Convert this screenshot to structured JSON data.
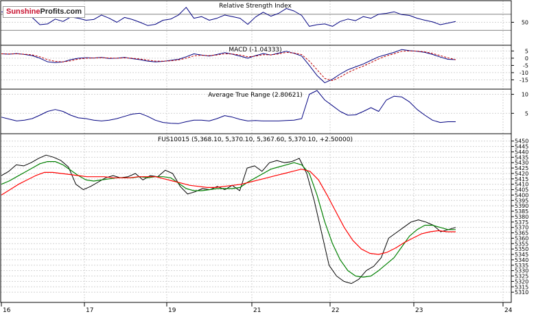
{
  "brand": {
    "part1": "Sunshine",
    "part2": "Profits.com"
  },
  "colors": {
    "background": "#ffffff",
    "grid": "#d2d2d2",
    "frame": "#000000",
    "price": "#000000",
    "ma_short": "#008000",
    "ma_long": "#ff0000",
    "indicator_line": "#000080",
    "macd_signal": "#c00000"
  },
  "x_axis": {
    "labels": [
      "16",
      "17",
      "19",
      "21",
      "22",
      "23",
      "24"
    ]
  },
  "chart_data": [
    {
      "type": "line",
      "title": "Relative Strength Index",
      "ylim": [
        0,
        100
      ],
      "levels": [
        70,
        30
      ],
      "yticks": [
        "50"
      ],
      "series": [
        {
          "name": "RSI",
          "values": [
            76,
            74,
            78,
            70,
            62,
            44,
            46,
            58,
            52,
            63,
            60,
            55,
            57,
            68,
            60,
            50,
            62,
            57,
            50,
            42,
            45,
            55,
            58,
            68,
            87,
            60,
            64,
            55,
            60,
            68,
            64,
            60,
            45,
            63,
            75,
            65,
            72,
            84,
            78,
            67,
            40,
            44,
            46,
            40,
            52,
            58,
            54,
            64,
            60,
            70,
            72,
            76,
            69,
            67,
            60,
            55,
            51,
            44,
            48,
            52
          ]
        }
      ]
    },
    {
      "type": "line",
      "title": "MACD (-1.04333)",
      "ylim": [
        -20,
        8
      ],
      "yticks": [
        "5",
        "0",
        "-5",
        "-10",
        "-15"
      ],
      "series": [
        {
          "values": [
            3,
            2.8,
            3.2,
            2.6,
            1.8,
            0,
            -2.5,
            -3,
            -2.6,
            -1,
            0,
            0.3,
            0.1,
            0.5,
            -0.2,
            0,
            0.5,
            -0.3,
            -1,
            -2,
            -2.6,
            -2.2,
            -1.5,
            -0.8,
            1,
            3,
            2.2,
            1.5,
            2.6,
            3.8,
            2.8,
            1.4,
            0,
            1.8,
            3.2,
            2.2,
            3.5,
            4.8,
            3.4,
            1.5,
            -5,
            -12,
            -17,
            -14.5,
            -11,
            -8,
            -6,
            -4,
            -1.5,
            1,
            2.5,
            4,
            6,
            5.2,
            4.8,
            4,
            2.6,
            0.8,
            -0.8,
            -1
          ]
        },
        {
          "values": [
            3,
            2.9,
            3,
            2.8,
            2.3,
            1,
            -1,
            -2.2,
            -2.6,
            -1.8,
            -0.6,
            0,
            0.1,
            0.3,
            0.1,
            0,
            0.2,
            0,
            -0.6,
            -1.3,
            -2,
            -2.1,
            -1.8,
            -1.2,
            0,
            1.6,
            2,
            1.8,
            2.2,
            3,
            2.9,
            2.2,
            1,
            1.4,
            2.4,
            2.3,
            2.9,
            4,
            3.6,
            2.5,
            -2,
            -8,
            -14,
            -15.5,
            -13,
            -10,
            -7.5,
            -5.5,
            -3,
            -0.5,
            1.6,
            3,
            4.8,
            5,
            4.9,
            4.4,
            3.3,
            1.8,
            0.2,
            -1
          ]
        }
      ]
    },
    {
      "type": "line",
      "title": "Average True Range (2.80621)",
      "ylim": [
        0,
        11
      ],
      "yticks": [
        "10",
        "5"
      ],
      "series": [
        {
          "name": "ATR",
          "values": [
            4,
            3.5,
            3,
            3.2,
            3.6,
            4.5,
            5.5,
            6,
            5.5,
            4.5,
            3.8,
            3.6,
            3.2,
            3,
            3.2,
            3.6,
            4.2,
            4.8,
            5,
            4.2,
            3.2,
            2.6,
            2.4,
            2.3,
            2.8,
            3.2,
            3.2,
            3,
            3.6,
            4.4,
            4,
            3.4,
            3,
            3.1,
            3,
            3,
            3,
            3.1,
            3.2,
            3.6,
            10,
            11,
            8.5,
            7,
            5.5,
            4.5,
            4.6,
            5.5,
            6.5,
            5.5,
            8.5,
            9.5,
            9.3,
            8,
            6,
            4.5,
            3.2,
            2.6,
            2.8,
            2.8
          ]
        }
      ]
    },
    {
      "type": "line",
      "title": "FUS10015 (5,368.10, 5,370.10, 5,367.60, 5,370.10, +2.50000)",
      "ylim": [
        5305,
        5453
      ],
      "yticks": [
        "5450",
        "5445",
        "5440",
        "5435",
        "5430",
        "5425",
        "5420",
        "5415",
        "5410",
        "5405",
        "5400",
        "5395",
        "5390",
        "5385",
        "5380",
        "5375",
        "5370",
        "5365",
        "5360",
        "5355",
        "5350",
        "5345",
        "5340",
        "5335",
        "5330",
        "5325",
        "5320",
        "5315",
        "5310"
      ],
      "series": [
        {
          "name": "Price",
          "values": [
            5418,
            5422,
            5428,
            5427,
            5430,
            5434,
            5437,
            5435,
            5432,
            5426,
            5410,
            5405,
            5408,
            5412,
            5416,
            5418,
            5416,
            5417,
            5420,
            5414,
            5418,
            5417,
            5423,
            5420,
            5408,
            5401,
            5403,
            5406,
            5405,
            5408,
            5405,
            5409,
            5404,
            5425,
            5427,
            5422,
            5430,
            5432,
            5430,
            5431,
            5434,
            5420,
            5395,
            5365,
            5335,
            5325,
            5320,
            5318,
            5322,
            5330,
            5334,
            5342,
            5360,
            5365,
            5370,
            5375,
            5377,
            5375,
            5372,
            5366,
            5368,
            5370
          ]
        },
        {
          "name": "MA short",
          "values": [
            5410,
            5413,
            5417,
            5421,
            5425,
            5429,
            5431,
            5431,
            5428,
            5423,
            5418,
            5414,
            5413,
            5414,
            5415,
            5416,
            5416,
            5416,
            5417,
            5416,
            5417,
            5417,
            5416,
            5411,
            5406,
            5404,
            5404,
            5405,
            5406,
            5406,
            5406,
            5407,
            5412,
            5416,
            5420,
            5424,
            5426,
            5428,
            5430,
            5428,
            5420,
            5400,
            5375,
            5355,
            5340,
            5330,
            5325,
            5324,
            5325,
            5330,
            5336,
            5342,
            5352,
            5362,
            5368,
            5372,
            5372,
            5370,
            5368,
            5368
          ]
        },
        {
          "name": "MA long",
          "values": [
            5400,
            5405,
            5410,
            5414,
            5418,
            5421,
            5421,
            5420,
            5419,
            5418,
            5417,
            5417,
            5417,
            5416,
            5416,
            5416,
            5417,
            5417,
            5417,
            5415,
            5413,
            5411,
            5409,
            5408,
            5407,
            5407,
            5408,
            5409,
            5410,
            5412,
            5414,
            5416,
            5418,
            5420,
            5422,
            5424,
            5422,
            5414,
            5400,
            5385,
            5370,
            5358,
            5350,
            5346,
            5345,
            5347,
            5351,
            5356,
            5360,
            5364,
            5366,
            5367,
            5366,
            5366
          ]
        }
      ]
    }
  ]
}
